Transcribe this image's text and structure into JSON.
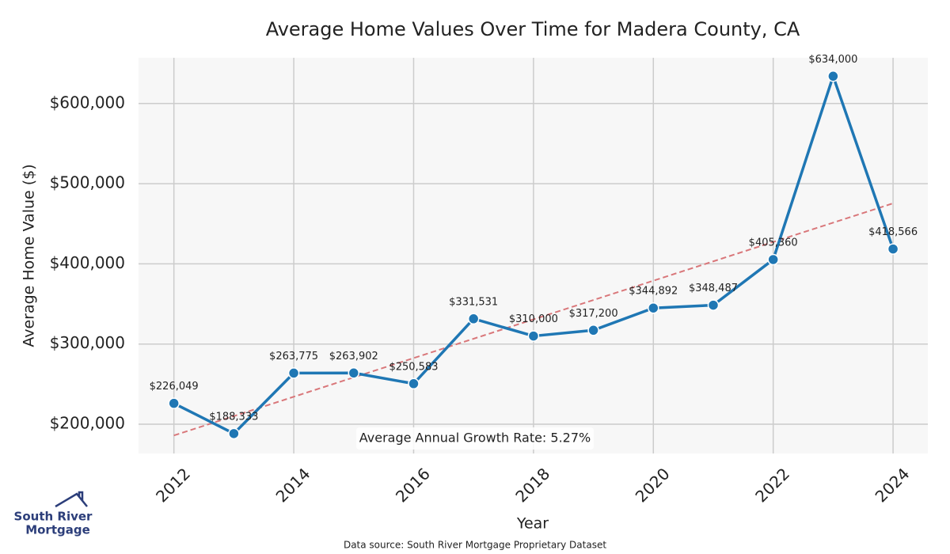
{
  "chart_data": {
    "type": "line",
    "title": "Average Home Values Over Time for Madera County, CA",
    "x_label": "Year",
    "y_label": "Average Home Value ($)",
    "x": [
      2012,
      2013,
      2014,
      2015,
      2016,
      2017,
      2018,
      2019,
      2020,
      2021,
      2022,
      2023,
      2024
    ],
    "values": [
      226049,
      188333,
      263775,
      263902,
      250583,
      331531,
      310000,
      317200,
      344892,
      348487,
      405360,
      634000,
      418566
    ],
    "value_labels": [
      "$226,049",
      "$188,333",
      "$263,775",
      "$263,902",
      "$250,583",
      "$331,531",
      "$310,000",
      "$317,200",
      "$344,892",
      "$348,487",
      "$405,360",
      "$634,000",
      "$418,566"
    ],
    "color": "#1f77b4",
    "trend": {
      "x": [
        2012,
        2024
      ],
      "values": [
        186000,
        475500
      ],
      "color": "#d9777a"
    },
    "annotation": "Average Annual Growth Rate: 5.27%",
    "xlim": [
      2011.41,
      2024.58
    ],
    "xticks": [
      2012,
      2014,
      2016,
      2018,
      2020,
      2022,
      2024
    ],
    "ylim": [
      163500,
      657000
    ],
    "yticks": [
      {
        "value": 200000,
        "label": "$200,000"
      },
      {
        "value": 300000,
        "label": "$300,000"
      },
      {
        "value": 400000,
        "label": "$400,000"
      },
      {
        "value": 500000,
        "label": "$500,000"
      },
      {
        "value": 600000,
        "label": "$600,000"
      }
    ],
    "grid": true
  },
  "logo": [
    "South River",
    "Mortgage"
  ],
  "source": "Data source: South River Mortgage Proprietary Dataset"
}
